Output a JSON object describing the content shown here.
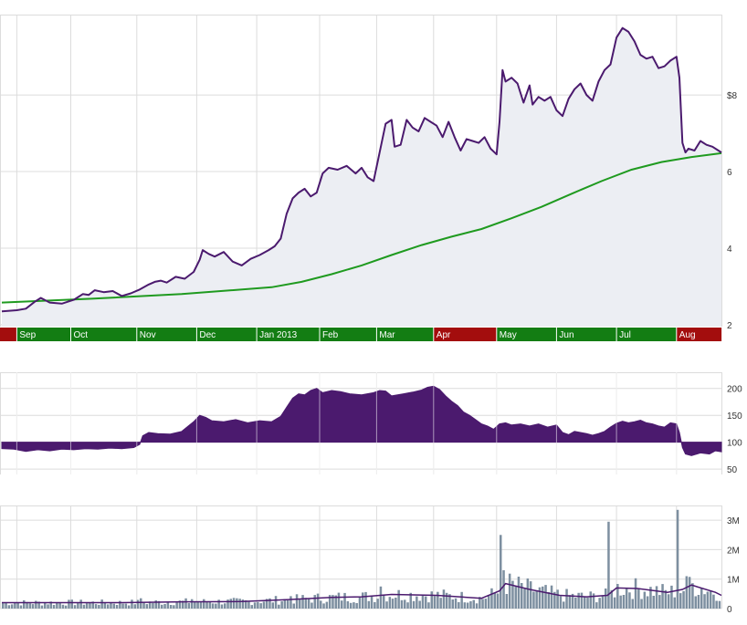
{
  "colors": {
    "price_line": "#4b1a6e",
    "price_fill": "#eceef3",
    "ma_line": "#1f9a1f",
    "indicator_fill": "#4b1a6e",
    "volume_bar": "#7d8fa0",
    "volume_avg_line": "#4b1a6e",
    "grid": "#dcdcdc",
    "month_up": "#137d13",
    "month_down": "#a30d0d",
    "axis_text": "#333333",
    "month_text": "#ffffff"
  },
  "chart_data": [
    {
      "id": "price",
      "type": "line",
      "ylim": [
        1.95,
        10.1
      ],
      "yticks": [
        {
          "v": 2,
          "label": "2"
        },
        {
          "v": 4,
          "label": "4"
        },
        {
          "v": 6,
          "label": "6"
        },
        {
          "v": 8,
          "label": "$8"
        }
      ],
      "x_range": [
        0,
        240
      ],
      "grid": true,
      "series": [
        {
          "role": "price",
          "points": [
            [
              0,
              2.35
            ],
            [
              5,
              2.38
            ],
            [
              8,
              2.42
            ],
            [
              11,
              2.6
            ],
            [
              13,
              2.7
            ],
            [
              16,
              2.58
            ],
            [
              20,
              2.55
            ],
            [
              24,
              2.65
            ],
            [
              27,
              2.8
            ],
            [
              29,
              2.78
            ],
            [
              31,
              2.9
            ],
            [
              34,
              2.85
            ],
            [
              37,
              2.88
            ],
            [
              40,
              2.75
            ],
            [
              43,
              2.82
            ],
            [
              46,
              2.92
            ],
            [
              49,
              3.05
            ],
            [
              51,
              3.12
            ],
            [
              53,
              3.15
            ],
            [
              55,
              3.1
            ],
            [
              58,
              3.25
            ],
            [
              61,
              3.2
            ],
            [
              64,
              3.38
            ],
            [
              66,
              3.7
            ],
            [
              67,
              3.95
            ],
            [
              69,
              3.85
            ],
            [
              71,
              3.78
            ],
            [
              74,
              3.9
            ],
            [
              77,
              3.65
            ],
            [
              80,
              3.55
            ],
            [
              83,
              3.72
            ],
            [
              86,
              3.82
            ],
            [
              89,
              3.95
            ],
            [
              91,
              4.05
            ],
            [
              93,
              4.25
            ],
            [
              95,
              4.9
            ],
            [
              97,
              5.3
            ],
            [
              99,
              5.45
            ],
            [
              101,
              5.55
            ],
            [
              103,
              5.35
            ],
            [
              105,
              5.45
            ],
            [
              107,
              5.95
            ],
            [
              109,
              6.1
            ],
            [
              112,
              6.05
            ],
            [
              115,
              6.15
            ],
            [
              118,
              5.95
            ],
            [
              120,
              6.1
            ],
            [
              122,
              5.85
            ],
            [
              124,
              5.75
            ],
            [
              126,
              6.5
            ],
            [
              128,
              7.25
            ],
            [
              130,
              7.35
            ],
            [
              131,
              6.65
            ],
            [
              133,
              6.7
            ],
            [
              135,
              7.35
            ],
            [
              137,
              7.15
            ],
            [
              139,
              7.05
            ],
            [
              141,
              7.4
            ],
            [
              143,
              7.3
            ],
            [
              145,
              7.2
            ],
            [
              147,
              6.9
            ],
            [
              149,
              7.3
            ],
            [
              151,
              6.9
            ],
            [
              153,
              6.55
            ],
            [
              155,
              6.85
            ],
            [
              157,
              6.8
            ],
            [
              159,
              6.75
            ],
            [
              161,
              6.9
            ],
            [
              163,
              6.6
            ],
            [
              165,
              6.45
            ],
            [
              166,
              7.3
            ],
            [
              167,
              8.65
            ],
            [
              168,
              8.35
            ],
            [
              170,
              8.45
            ],
            [
              172,
              8.3
            ],
            [
              174,
              7.8
            ],
            [
              176,
              8.25
            ],
            [
              177,
              7.75
            ],
            [
              179,
              7.95
            ],
            [
              181,
              7.85
            ],
            [
              183,
              7.95
            ],
            [
              185,
              7.6
            ],
            [
              187,
              7.45
            ],
            [
              189,
              7.9
            ],
            [
              191,
              8.15
            ],
            [
              193,
              8.3
            ],
            [
              195,
              8.0
            ],
            [
              197,
              7.85
            ],
            [
              199,
              8.35
            ],
            [
              201,
              8.65
            ],
            [
              203,
              8.8
            ],
            [
              205,
              9.5
            ],
            [
              207,
              9.75
            ],
            [
              209,
              9.65
            ],
            [
              211,
              9.4
            ],
            [
              213,
              9.05
            ],
            [
              215,
              8.95
            ],
            [
              217,
              9.0
            ],
            [
              219,
              8.7
            ],
            [
              221,
              8.75
            ],
            [
              223,
              8.9
            ],
            [
              225,
              9.0
            ],
            [
              226,
              8.45
            ],
            [
              227,
              6.75
            ],
            [
              228,
              6.5
            ],
            [
              229,
              6.6
            ],
            [
              231,
              6.55
            ],
            [
              233,
              6.8
            ],
            [
              235,
              6.7
            ],
            [
              237,
              6.65
            ],
            [
              239,
              6.55
            ],
            [
              240,
              6.5
            ]
          ]
        },
        {
          "role": "moving_average",
          "points": [
            [
              0,
              2.58
            ],
            [
              30,
              2.68
            ],
            [
              60,
              2.8
            ],
            [
              90,
              2.98
            ],
            [
              100,
              3.12
            ],
            [
              110,
              3.32
            ],
            [
              120,
              3.55
            ],
            [
              130,
              3.82
            ],
            [
              140,
              4.08
            ],
            [
              150,
              4.3
            ],
            [
              160,
              4.5
            ],
            [
              170,
              4.78
            ],
            [
              180,
              5.08
            ],
            [
              190,
              5.42
            ],
            [
              200,
              5.75
            ],
            [
              210,
              6.05
            ],
            [
              220,
              6.25
            ],
            [
              230,
              6.38
            ],
            [
              240,
              6.48
            ]
          ]
        }
      ],
      "months": [
        {
          "label": "",
          "start": 0,
          "end": 5,
          "trend": "down"
        },
        {
          "label": "Sep",
          "start": 5,
          "end": 23,
          "trend": "up"
        },
        {
          "label": "Oct",
          "start": 23,
          "end": 45,
          "trend": "up"
        },
        {
          "label": "Nov",
          "start": 45,
          "end": 65,
          "trend": "up"
        },
        {
          "label": "Dec",
          "start": 65,
          "end": 85,
          "trend": "up"
        },
        {
          "label": "Jan 2013",
          "start": 85,
          "end": 106,
          "trend": "up"
        },
        {
          "label": "Feb",
          "start": 106,
          "end": 125,
          "trend": "up"
        },
        {
          "label": "Mar",
          "start": 125,
          "end": 144,
          "trend": "up"
        },
        {
          "label": "Apr",
          "start": 144,
          "end": 165,
          "trend": "down"
        },
        {
          "label": "May",
          "start": 165,
          "end": 185,
          "trend": "up"
        },
        {
          "label": "Jun",
          "start": 185,
          "end": 205,
          "trend": "up"
        },
        {
          "label": "Jul",
          "start": 205,
          "end": 225,
          "trend": "up"
        },
        {
          "label": "Aug",
          "start": 225,
          "end": 240,
          "trend": "down"
        }
      ]
    },
    {
      "id": "indicator",
      "type": "area",
      "ylim": [
        40,
        230
      ],
      "baseline": 100,
      "yticks": [
        {
          "v": 50,
          "label": "50"
        },
        {
          "v": 100,
          "label": "100"
        },
        {
          "v": 150,
          "label": "150"
        },
        {
          "v": 200,
          "label": "200"
        }
      ],
      "x_range": [
        0,
        240
      ],
      "grid": true,
      "points": [
        [
          0,
          88
        ],
        [
          4,
          87
        ],
        [
          8,
          83
        ],
        [
          12,
          86
        ],
        [
          16,
          84
        ],
        [
          20,
          87
        ],
        [
          24,
          86
        ],
        [
          28,
          88
        ],
        [
          32,
          87
        ],
        [
          36,
          89
        ],
        [
          40,
          88
        ],
        [
          44,
          90
        ],
        [
          46,
          96
        ],
        [
          47,
          112
        ],
        [
          49,
          118
        ],
        [
          52,
          116
        ],
        [
          56,
          115
        ],
        [
          60,
          120
        ],
        [
          64,
          138
        ],
        [
          66,
          150
        ],
        [
          68,
          146
        ],
        [
          70,
          140
        ],
        [
          74,
          138
        ],
        [
          78,
          142
        ],
        [
          82,
          136
        ],
        [
          86,
          140
        ],
        [
          90,
          138
        ],
        [
          93,
          148
        ],
        [
          95,
          165
        ],
        [
          97,
          182
        ],
        [
          99,
          190
        ],
        [
          101,
          188
        ],
        [
          103,
          196
        ],
        [
          105,
          200
        ],
        [
          107,
          192
        ],
        [
          110,
          196
        ],
        [
          113,
          194
        ],
        [
          116,
          190
        ],
        [
          120,
          188
        ],
        [
          124,
          192
        ],
        [
          126,
          196
        ],
        [
          128,
          195
        ],
        [
          130,
          186
        ],
        [
          132,
          188
        ],
        [
          134,
          190
        ],
        [
          137,
          193
        ],
        [
          140,
          197
        ],
        [
          142,
          202
        ],
        [
          144,
          204
        ],
        [
          146,
          198
        ],
        [
          148,
          186
        ],
        [
          150,
          176
        ],
        [
          152,
          168
        ],
        [
          154,
          156
        ],
        [
          156,
          150
        ],
        [
          158,
          142
        ],
        [
          160,
          134
        ],
        [
          162,
          130
        ],
        [
          164,
          124
        ],
        [
          166,
          134
        ],
        [
          168,
          136
        ],
        [
          170,
          132
        ],
        [
          173,
          134
        ],
        [
          176,
          130
        ],
        [
          179,
          134
        ],
        [
          182,
          128
        ],
        [
          185,
          132
        ],
        [
          187,
          118
        ],
        [
          189,
          114
        ],
        [
          191,
          120
        ],
        [
          193,
          118
        ],
        [
          195,
          116
        ],
        [
          197,
          113
        ],
        [
          199,
          116
        ],
        [
          201,
          120
        ],
        [
          203,
          128
        ],
        [
          205,
          135
        ],
        [
          207,
          139
        ],
        [
          209,
          136
        ],
        [
          211,
          138
        ],
        [
          213,
          141
        ],
        [
          215,
          136
        ],
        [
          217,
          134
        ],
        [
          219,
          130
        ],
        [
          221,
          128
        ],
        [
          223,
          136
        ],
        [
          225,
          134
        ],
        [
          226,
          118
        ],
        [
          227,
          90
        ],
        [
          228,
          78
        ],
        [
          230,
          75
        ],
        [
          233,
          80
        ],
        [
          236,
          78
        ],
        [
          238,
          84
        ],
        [
          240,
          82
        ]
      ]
    },
    {
      "id": "volume",
      "type": "bar",
      "ylim": [
        0,
        3500000
      ],
      "yticks": [
        {
          "v": 0,
          "label": "0"
        },
        {
          "v": 1000000,
          "label": "1M"
        },
        {
          "v": 2000000,
          "label": "2M"
        },
        {
          "v": 3000000,
          "label": "3M"
        }
      ],
      "x_range": [
        0,
        240
      ],
      "grid": true,
      "spikes": [
        [
          46,
          350000
        ],
        [
          63,
          320000
        ],
        [
          96,
          420000
        ],
        [
          126,
          750000
        ],
        [
          166,
          2500000
        ],
        [
          167,
          1300000
        ],
        [
          202,
          2950000
        ],
        [
          225,
          3350000
        ],
        [
          228,
          1100000
        ]
      ],
      "average": [
        [
          0,
          200000
        ],
        [
          40,
          200000
        ],
        [
          60,
          230000
        ],
        [
          80,
          240000
        ],
        [
          95,
          300000
        ],
        [
          110,
          380000
        ],
        [
          120,
          400000
        ],
        [
          130,
          480000
        ],
        [
          145,
          450000
        ],
        [
          160,
          350000
        ],
        [
          166,
          600000
        ],
        [
          168,
          850000
        ],
        [
          176,
          650000
        ],
        [
          186,
          450000
        ],
        [
          195,
          400000
        ],
        [
          202,
          450000
        ],
        [
          205,
          700000
        ],
        [
          212,
          680000
        ],
        [
          222,
          550000
        ],
        [
          227,
          650000
        ],
        [
          230,
          800000
        ],
        [
          238,
          550000
        ],
        [
          240,
          450000
        ]
      ]
    }
  ]
}
